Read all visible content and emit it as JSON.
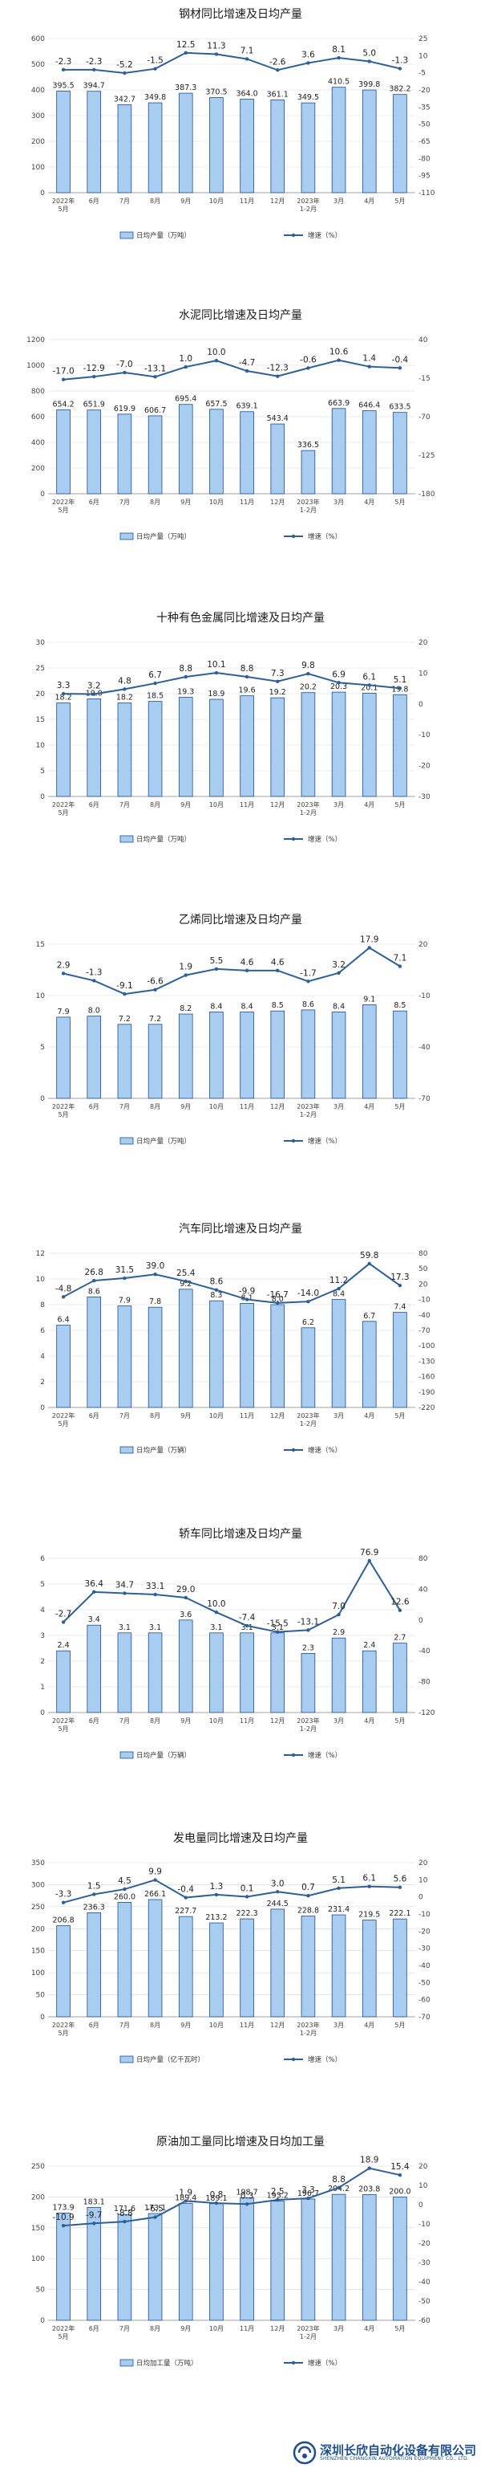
{
  "colors": {
    "bar_fill": "#a9cdf0",
    "bar_stroke": "#1f4e8c",
    "line": "#2f5f97",
    "grid": "#d8d8d8",
    "watermark": "#1f4e8c"
  },
  "chart_data": [
    {
      "type": "bar",
      "title": "钢材同比增速及日均产量",
      "categories": [
        "2022年\n5月",
        "6月",
        "7月",
        "8月",
        "9月",
        "10月",
        "11月",
        "12月",
        "2023年\n1-2月",
        "3月",
        "4月",
        "5月"
      ],
      "series": [
        {
          "name": "日均产量（万吨）",
          "type": "bar",
          "axis": "left",
          "values": [
            395.5,
            394.7,
            342.7,
            349.8,
            387.3,
            370.5,
            364.0,
            361.1,
            349.5,
            410.5,
            399.8,
            382.2
          ]
        },
        {
          "name": "增速（%）",
          "type": "line",
          "axis": "right",
          "values": [
            -2.3,
            -2.3,
            -5.2,
            -1.5,
            12.5,
            11.3,
            7.1,
            -2.6,
            3.6,
            8.1,
            5.0,
            -1.3
          ]
        }
      ],
      "left_axis": {
        "ylim": [
          0,
          600
        ],
        "ticks": [
          0,
          100,
          200,
          300,
          400,
          500,
          600
        ]
      },
      "right_axis": {
        "ylim": [
          -110,
          25
        ],
        "ticks": [
          -110,
          -95,
          -80,
          -65,
          -50,
          -35,
          -20,
          -5,
          10,
          25
        ]
      },
      "legend": "bottom"
    },
    {
      "type": "bar",
      "title": "水泥同比增速及日均产量",
      "categories": [
        "2022年\n5月",
        "6月",
        "7月",
        "8月",
        "9月",
        "10月",
        "11月",
        "12月",
        "2023年\n1-2月",
        "3月",
        "4月",
        "5月"
      ],
      "series": [
        {
          "name": "日均产量（万吨）",
          "type": "bar",
          "axis": "left",
          "values": [
            654.2,
            651.9,
            619.9,
            606.7,
            695.4,
            657.5,
            639.1,
            543.4,
            336.5,
            663.9,
            646.4,
            633.5
          ]
        },
        {
          "name": "增速（%）",
          "type": "line",
          "axis": "right",
          "values": [
            -17.0,
            -12.9,
            -7.0,
            -13.1,
            1.0,
            10.0,
            -4.7,
            -12.3,
            -0.6,
            10.6,
            1.4,
            -0.4
          ]
        }
      ],
      "left_axis": {
        "ylim": [
          0,
          1200
        ],
        "ticks": [
          0,
          200,
          400,
          600,
          800,
          1000,
          1200
        ]
      },
      "right_axis": {
        "ylim": [
          -180,
          40
        ],
        "ticks": [
          -180,
          -125,
          -70,
          -15,
          40
        ]
      },
      "legend": "bottom"
    },
    {
      "type": "bar",
      "title": "十种有色金属同比增速及日均产量",
      "categories": [
        "2022年\n5月",
        "6月",
        "7月",
        "8月",
        "9月",
        "10月",
        "11月",
        "12月",
        "2023年\n1-2月",
        "3月",
        "4月",
        "5月"
      ],
      "series": [
        {
          "name": "日均产量（万吨）",
          "type": "bar",
          "axis": "left",
          "values": [
            18.2,
            19.0,
            18.2,
            18.5,
            19.3,
            18.9,
            19.6,
            19.2,
            20.2,
            20.3,
            20.1,
            19.8
          ]
        },
        {
          "name": "增速（%）",
          "type": "line",
          "axis": "right",
          "values": [
            3.3,
            3.2,
            4.8,
            6.7,
            8.8,
            10.1,
            8.8,
            7.3,
            9.8,
            6.9,
            6.1,
            5.1
          ]
        }
      ],
      "left_axis": {
        "ylim": [
          0,
          30
        ],
        "ticks": [
          0,
          5,
          10,
          15,
          20,
          25,
          30
        ]
      },
      "right_axis": {
        "ylim": [
          -30,
          20
        ],
        "ticks": [
          -30,
          -20,
          -10,
          0,
          10,
          20
        ]
      },
      "legend": "bottom"
    },
    {
      "type": "bar",
      "title": "乙烯同比增速及日均产量",
      "categories": [
        "2022年\n5月",
        "6月",
        "7月",
        "8月",
        "9月",
        "10月",
        "11月",
        "12月",
        "2023年\n1-2月",
        "3月",
        "4月",
        "5月"
      ],
      "series": [
        {
          "name": "日均产量（万吨）",
          "type": "bar",
          "axis": "left",
          "values": [
            7.9,
            8.0,
            7.2,
            7.2,
            8.2,
            8.4,
            8.4,
            8.5,
            8.6,
            8.4,
            9.1,
            8.5
          ]
        },
        {
          "name": "增速（%）",
          "type": "line",
          "axis": "right",
          "values": [
            2.9,
            -1.3,
            -9.1,
            -6.6,
            1.9,
            5.5,
            4.6,
            4.6,
            -1.7,
            3.2,
            17.9,
            7.1
          ]
        }
      ],
      "left_axis": {
        "ylim": [
          0,
          15
        ],
        "ticks": [
          0,
          5,
          10,
          15
        ]
      },
      "right_axis": {
        "ylim": [
          -70,
          20
        ],
        "ticks": [
          -70,
          -40,
          -10,
          20
        ]
      },
      "legend": "bottom"
    },
    {
      "type": "bar",
      "title": "汽车同比增速及日均产量",
      "categories": [
        "2022年\n5月",
        "6月",
        "7月",
        "8月",
        "9月",
        "10月",
        "11月",
        "12月",
        "2023年\n1-2月",
        "3月",
        "4月",
        "5月"
      ],
      "series": [
        {
          "name": "日均产量（万辆）",
          "type": "bar",
          "axis": "left",
          "values": [
            6.4,
            8.6,
            7.9,
            7.8,
            9.2,
            8.3,
            8.1,
            8.0,
            6.2,
            8.4,
            6.7,
            7.4
          ]
        },
        {
          "name": "增速（%）",
          "type": "line",
          "axis": "right",
          "values": [
            -4.8,
            26.8,
            31.5,
            39.0,
            25.4,
            8.6,
            -9.9,
            -16.7,
            -14.0,
            11.2,
            59.8,
            17.3
          ]
        }
      ],
      "left_axis": {
        "ylim": [
          0,
          12
        ],
        "ticks": [
          0,
          2,
          4,
          6,
          8,
          10,
          12
        ]
      },
      "right_axis": {
        "ylim": [
          -220,
          80
        ],
        "ticks": [
          -220,
          -190,
          -160,
          -130,
          -100,
          -70,
          -40,
          -10,
          20,
          50,
          80
        ]
      },
      "legend": "bottom"
    },
    {
      "type": "bar",
      "title": "轿车同比增速及日均产量",
      "categories": [
        "2022年\n5月",
        "6月",
        "7月",
        "8月",
        "9月",
        "10月",
        "11月",
        "12月",
        "2023年\n1-2月",
        "3月",
        "4月",
        "5月"
      ],
      "series": [
        {
          "name": "日均产量（万辆）",
          "type": "bar",
          "axis": "left",
          "values": [
            2.4,
            3.4,
            3.1,
            3.1,
            3.6,
            3.1,
            3.1,
            3.1,
            2.3,
            2.9,
            2.4,
            2.7
          ]
        },
        {
          "name": "增速（%）",
          "type": "line",
          "axis": "right",
          "values": [
            -2.7,
            36.4,
            34.7,
            33.1,
            29.0,
            10.0,
            -7.4,
            -15.5,
            -13.1,
            7.0,
            76.9,
            12.6
          ]
        }
      ],
      "left_axis": {
        "ylim": [
          0,
          6
        ],
        "ticks": [
          0,
          1,
          2,
          3,
          4,
          5,
          6
        ]
      },
      "right_axis": {
        "ylim": [
          -120,
          80
        ],
        "ticks": [
          -120,
          -80,
          -40,
          0,
          40,
          80
        ]
      },
      "legend": "bottom"
    },
    {
      "type": "bar",
      "title": "发电量同比增速及日均产量",
      "categories": [
        "2022年\n5月",
        "6月",
        "7月",
        "8月",
        "9月",
        "10月",
        "11月",
        "12月",
        "2023年\n1-2月",
        "3月",
        "4月",
        "5月"
      ],
      "series": [
        {
          "name": "日均产量（亿千瓦时）",
          "type": "bar",
          "axis": "left",
          "values": [
            206.8,
            236.3,
            260.0,
            266.1,
            227.7,
            213.2,
            222.3,
            244.5,
            228.8,
            231.4,
            219.5,
            222.1
          ]
        },
        {
          "name": "增速（%）",
          "type": "line",
          "axis": "right",
          "values": [
            -3.3,
            1.5,
            4.5,
            9.9,
            -0.4,
            1.3,
            0.1,
            3.0,
            0.7,
            5.1,
            6.1,
            5.6
          ]
        }
      ],
      "left_axis": {
        "ylim": [
          0,
          350
        ],
        "ticks": [
          0,
          50,
          100,
          150,
          200,
          250,
          300,
          350
        ]
      },
      "right_axis": {
        "ylim": [
          -70,
          20
        ],
        "ticks": [
          -70,
          -60,
          -50,
          -40,
          -30,
          -20,
          -10,
          0,
          10,
          20
        ]
      },
      "legend": "bottom"
    },
    {
      "type": "bar",
      "title": "原油加工量同比增速及日均加工量",
      "categories": [
        "2022年\n5月",
        "6月",
        "7月",
        "8月",
        "9月",
        "10月",
        "11月",
        "12月",
        "2023年\n1-2月",
        "3月",
        "4月",
        "5月"
      ],
      "series": [
        {
          "name": "日均加工量（万吨）",
          "type": "bar",
          "axis": "left",
          "values": [
            173.9,
            183.1,
            171.6,
            173.1,
            189.4,
            189.1,
            198.7,
            193.2,
            196.7,
            204.2,
            203.8,
            200.0
          ]
        },
        {
          "name": "增速（%）",
          "type": "line",
          "axis": "right",
          "values": [
            -10.9,
            -9.7,
            -8.8,
            -6.5,
            1.9,
            0.8,
            0.3,
            2.5,
            3.3,
            8.8,
            18.9,
            15.4
          ]
        }
      ],
      "left_axis": {
        "ylim": [
          0,
          250
        ],
        "ticks": [
          0,
          50,
          100,
          150,
          200,
          250
        ]
      },
      "right_axis": {
        "ylim": [
          -60,
          20
        ],
        "ticks": [
          -60,
          -50,
          -40,
          -30,
          -20,
          -10,
          0,
          10,
          20
        ]
      },
      "legend": "bottom"
    }
  ],
  "watermark": {
    "name_cn": "深圳长欣自动化设备有限公司",
    "name_en": "SHENZHEN CHANGXIN AUTOMATION EQUIPMENT CO., LTD.",
    "logo_icon": "company-logo-icon"
  }
}
